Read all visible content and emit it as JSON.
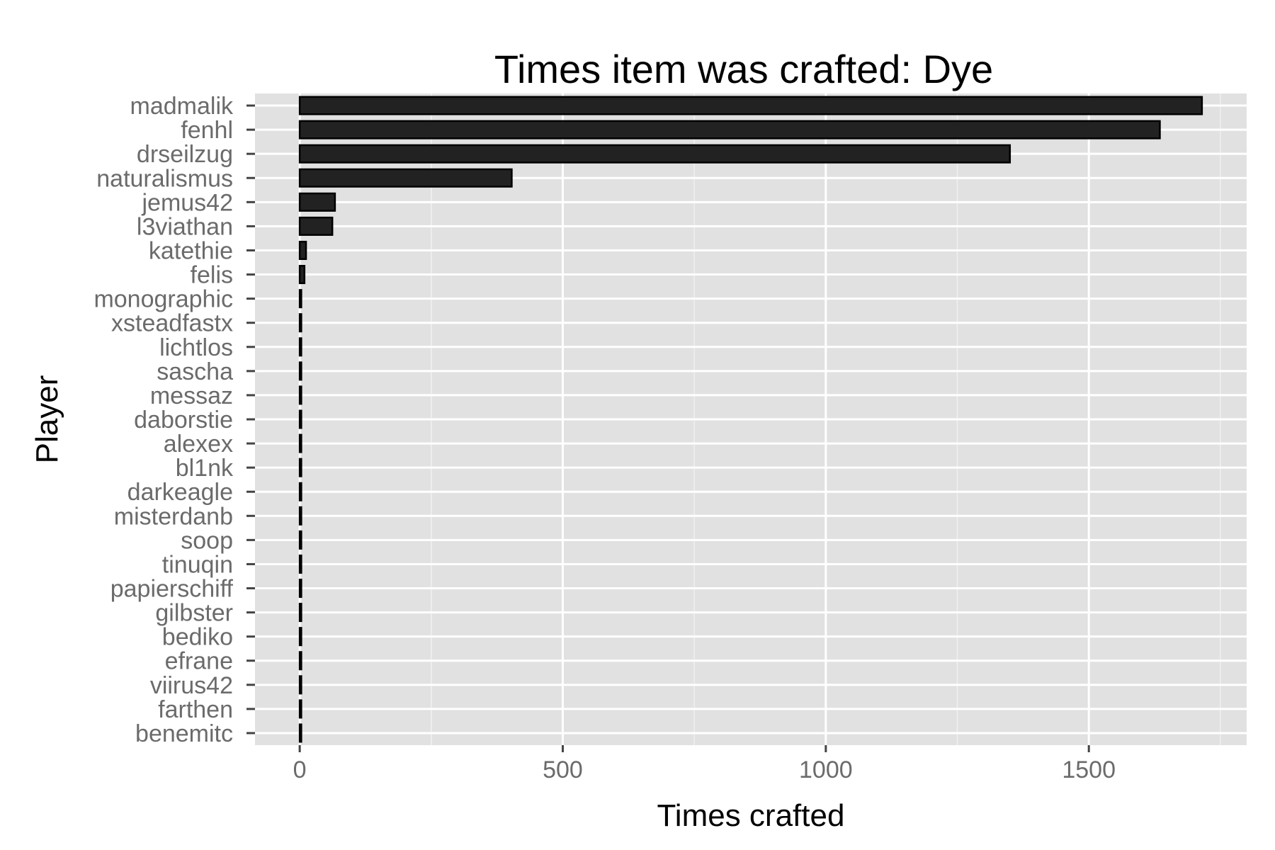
{
  "chart_data": {
    "type": "bar",
    "orientation": "horizontal",
    "title": "Times item was crafted: Dye",
    "xlabel": "Times crafted",
    "ylabel": "Player",
    "xlim": [
      -85,
      1800
    ],
    "xticks": [
      0,
      500,
      1000,
      1500
    ],
    "grid": true,
    "legend": "none",
    "colors": {
      "bar_fill": "#222222",
      "panel": "#e1e1e1",
      "grid": "#ffffff"
    },
    "categories": [
      "madmalik",
      "fenhl",
      "drseilzug",
      "naturalismus",
      "jemus42",
      "l3viathan",
      "katethie",
      "felis",
      "monographic",
      "xsteadfastx",
      "lichtlos",
      "sascha",
      "messaz",
      "daborstie",
      "alexex",
      "bl1nk",
      "darkeagle",
      "misterdanb",
      "soop",
      "tinuqin",
      "papierschiff",
      "gilbster",
      "bediko",
      "efrane",
      "viirus42",
      "farthen",
      "benemitc"
    ],
    "values": [
      1715,
      1635,
      1350,
      403,
      67,
      62,
      12,
      9,
      3,
      3,
      3,
      3,
      3,
      3,
      3,
      3,
      3,
      3,
      3,
      3,
      3,
      3,
      3,
      3,
      3,
      3,
      3
    ]
  }
}
